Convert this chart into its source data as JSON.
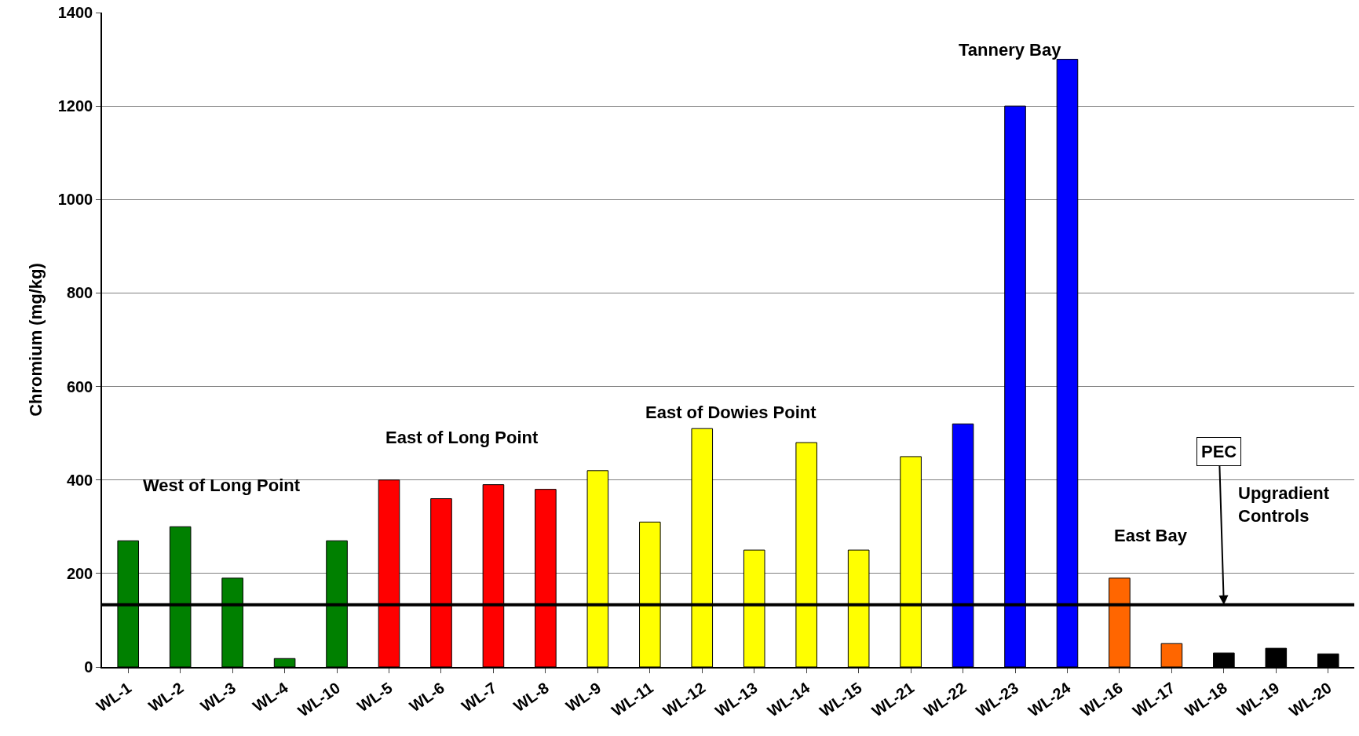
{
  "chart_data": {
    "type": "bar",
    "ylabel": "Chromium (mg/kg)",
    "categories": [
      "WL-1",
      "WL-2",
      "WL-3",
      "WL-4",
      "WL-10",
      "WL-5",
      "WL-6",
      "WL-7",
      "WL-8",
      "WL-9",
      "WL-11",
      "WL-12",
      "WL-13",
      "WL-14",
      "WL-15",
      "WL-21",
      "WL-22",
      "WL-23",
      "WL-24",
      "WL-16",
      "WL-17",
      "WL-18",
      "WL-19",
      "WL-20"
    ],
    "values": [
      270,
      300,
      190,
      18,
      270,
      400,
      360,
      390,
      380,
      420,
      310,
      510,
      250,
      480,
      250,
      450,
      520,
      1200,
      1300,
      190,
      50,
      30,
      40,
      28
    ],
    "colors": [
      "#008000",
      "#008000",
      "#008000",
      "#008000",
      "#008000",
      "#ff0000",
      "#ff0000",
      "#ff0000",
      "#ff0000",
      "#ffff00",
      "#ffff00",
      "#ffff00",
      "#ffff00",
      "#ffff00",
      "#ffff00",
      "#ffff00",
      "#0000ff",
      "#0000ff",
      "#0000ff",
      "#ff6600",
      "#ff6600",
      "#000000",
      "#000000",
      "#000000"
    ],
    "ylim": [
      0,
      1400
    ],
    "yticks": [
      0,
      200,
      400,
      600,
      800,
      1000,
      1200,
      1400
    ],
    "grid": "y",
    "ref_lines": [
      {
        "axis": "y",
        "value": 133,
        "label": "PEC",
        "color": "#000000",
        "line_style": "solid"
      }
    ],
    "annotations": [
      "West of Long Point",
      "East of Long Point",
      "East of Dowies Point",
      "Tannery Bay",
      "East Bay",
      "Upgradient Controls"
    ]
  }
}
